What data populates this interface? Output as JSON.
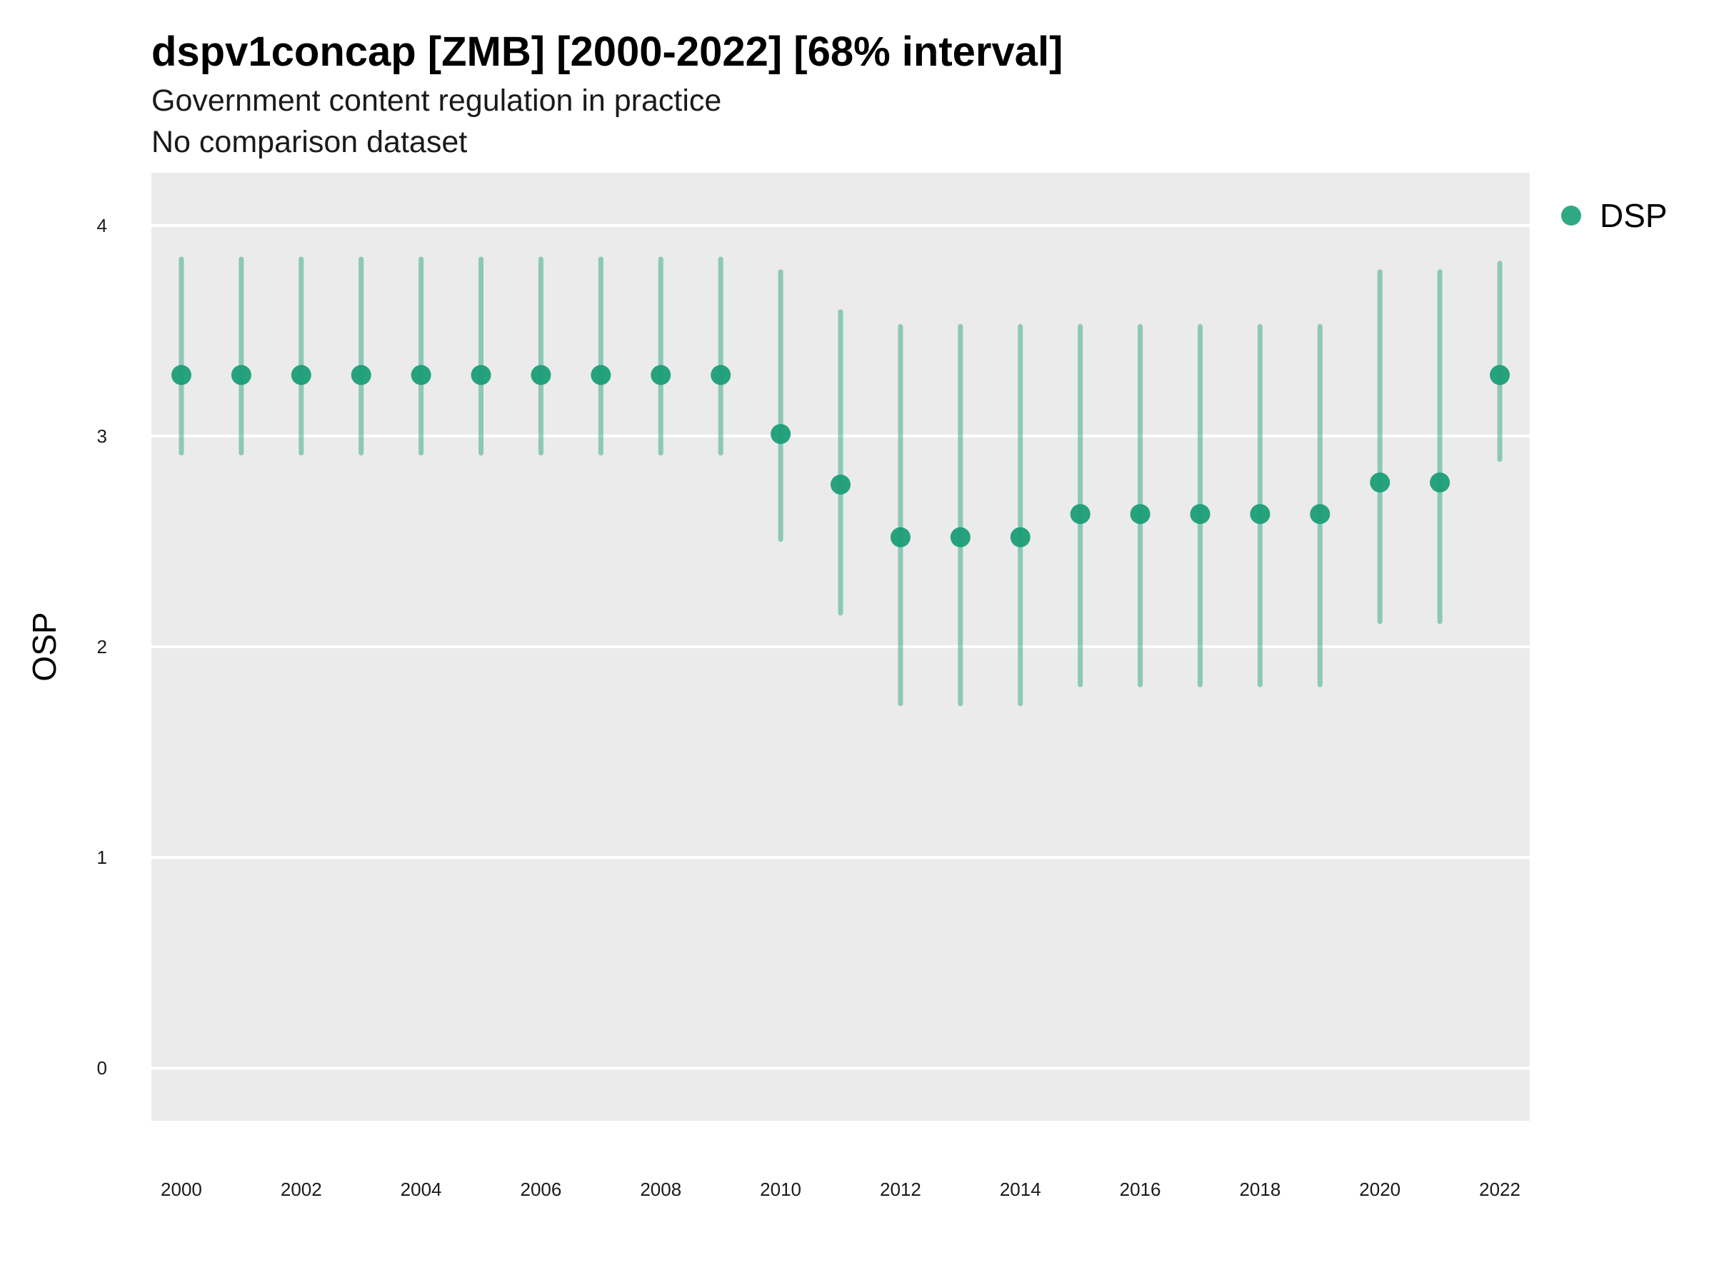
{
  "chart_data": {
    "type": "scatter",
    "title": "dspv1concap [ZMB] [2000-2022] [68% interval]",
    "subtitle": "Government content regulation in practice",
    "subtitle2": "No comparison dataset",
    "xlabel": "",
    "ylabel": "OSP",
    "ylim": [
      -0.25,
      4.25
    ],
    "xlim": [
      1999.5,
      2022.5
    ],
    "yticks": [
      0,
      1,
      2,
      3,
      4
    ],
    "xticks": [
      2000,
      2002,
      2004,
      2006,
      2008,
      2010,
      2012,
      2014,
      2016,
      2018,
      2020,
      2022
    ],
    "grid": true,
    "legend_position": "right",
    "colors": {
      "series": "#1b9e77",
      "panel": "#ebebeb",
      "grid": "#ffffff"
    },
    "series": [
      {
        "name": "DSP",
        "x": [
          2000,
          2001,
          2002,
          2003,
          2004,
          2005,
          2006,
          2007,
          2008,
          2009,
          2010,
          2011,
          2012,
          2013,
          2014,
          2015,
          2016,
          2017,
          2018,
          2019,
          2020,
          2021,
          2022
        ],
        "y": [
          3.29,
          3.29,
          3.29,
          3.29,
          3.29,
          3.29,
          3.29,
          3.29,
          3.29,
          3.29,
          3.01,
          2.77,
          2.52,
          2.52,
          2.52,
          2.63,
          2.63,
          2.63,
          2.63,
          2.63,
          2.78,
          2.78,
          3.29
        ],
        "lower": [
          2.92,
          2.92,
          2.92,
          2.92,
          2.92,
          2.92,
          2.92,
          2.92,
          2.92,
          2.92,
          2.51,
          2.16,
          1.73,
          1.73,
          1.73,
          1.82,
          1.82,
          1.82,
          1.82,
          1.82,
          2.12,
          2.12,
          2.89
        ],
        "upper": [
          3.84,
          3.84,
          3.84,
          3.84,
          3.84,
          3.84,
          3.84,
          3.84,
          3.84,
          3.84,
          3.78,
          3.59,
          3.52,
          3.52,
          3.52,
          3.52,
          3.52,
          3.52,
          3.52,
          3.52,
          3.78,
          3.78,
          3.82
        ]
      }
    ]
  }
}
